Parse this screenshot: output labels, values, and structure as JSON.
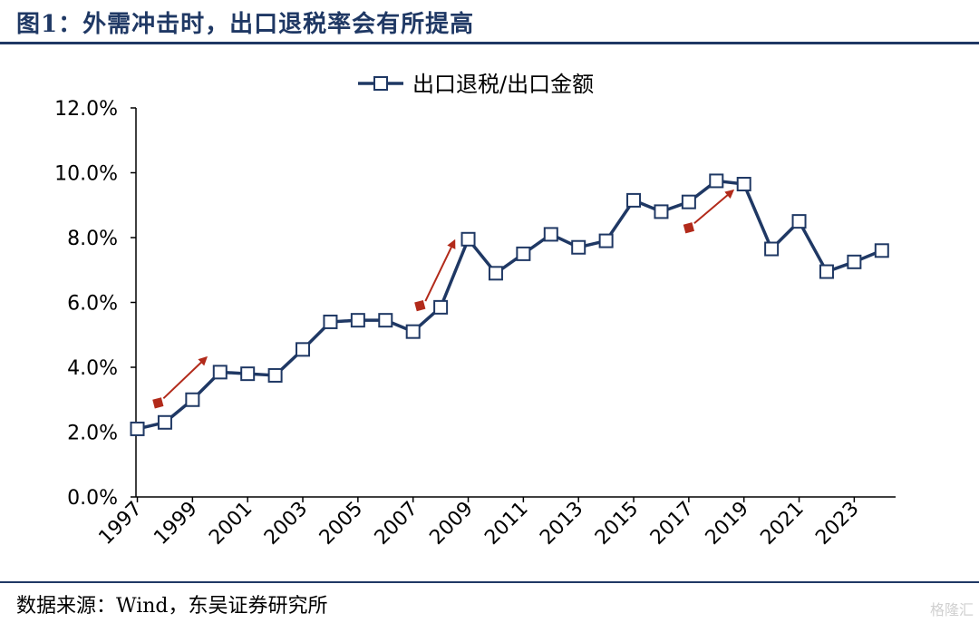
{
  "header": {
    "title": "图1：外需冲击时，出口退税率会有所提高"
  },
  "footer": {
    "source": "数据来源：Wind，东吴证券研究所",
    "watermark": "格隆汇"
  },
  "chart_data": {
    "type": "line",
    "title": "",
    "xlabel": "",
    "ylabel": "",
    "x": [
      1997,
      1998,
      1999,
      2000,
      2001,
      2002,
      2003,
      2004,
      2005,
      2006,
      2007,
      2008,
      2009,
      2010,
      2011,
      2012,
      2013,
      2014,
      2015,
      2016,
      2017,
      2018,
      2019,
      2020,
      2021,
      2022,
      2023,
      2024
    ],
    "series": [
      {
        "name": "出口退税/出口金额",
        "values": [
          2.1,
          2.3,
          3.0,
          3.85,
          3.8,
          3.75,
          4.55,
          5.4,
          5.45,
          5.45,
          5.1,
          5.85,
          7.95,
          6.9,
          7.5,
          8.1,
          7.7,
          7.9,
          9.15,
          8.8,
          9.1,
          9.75,
          9.65,
          7.65,
          8.5,
          6.95,
          7.25,
          7.6
        ]
      }
    ],
    "ylim": [
      0,
      12
    ],
    "yticks": [
      0,
      2,
      4,
      6,
      8,
      10,
      12
    ],
    "ytick_labels": [
      "0.0%",
      "2.0%",
      "4.0%",
      "6.0%",
      "8.0%",
      "10.0%",
      "12.0%"
    ],
    "xtick_labels": [
      "1997",
      "1999",
      "2001",
      "2003",
      "2005",
      "2007",
      "2009",
      "2011",
      "2013",
      "2015",
      "2017",
      "2019",
      "2021",
      "2023"
    ],
    "legend": "top-center",
    "line_color": "#1f3864",
    "annotations": [
      {
        "type": "arrow",
        "color": "#b22a1a",
        "from": [
          1997.75,
          2.9
        ],
        "to": [
          1999.5,
          4.3
        ]
      },
      {
        "type": "arrow",
        "color": "#b22a1a",
        "from": [
          2007.25,
          5.9
        ],
        "to": [
          2008.5,
          7.9
        ]
      },
      {
        "type": "arrow",
        "color": "#b22a1a",
        "from": [
          2017.0,
          8.3
        ],
        "to": [
          2018.6,
          9.45
        ]
      }
    ]
  }
}
